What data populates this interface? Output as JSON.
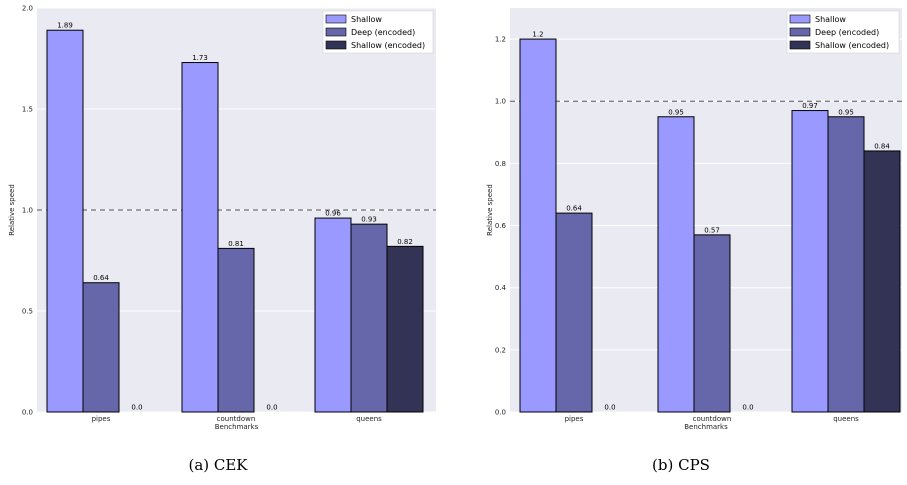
{
  "captions": [
    "(a) CEK",
    "(b) CPS"
  ],
  "colors": [
    "#9999ff",
    "#6666aa",
    "#333355"
  ],
  "chart_data": [
    {
      "type": "bar",
      "categories": [
        "pipes",
        "countdown",
        "queens"
      ],
      "series": [
        {
          "name": "Shallow",
          "values": [
            1.89,
            1.73,
            0.96
          ],
          "labels": [
            "1.89",
            "1.73",
            "0.96"
          ]
        },
        {
          "name": "Deep (encoded)",
          "values": [
            0.64,
            0.81,
            0.93
          ],
          "labels": [
            "0.64",
            "0.81",
            "0.93"
          ]
        },
        {
          "name": "Shallow (encoded)",
          "values": [
            0.0,
            0.0,
            0.82
          ],
          "labels": [
            "0.0",
            "0.0",
            "0.82"
          ]
        }
      ],
      "xlabel": "Benchmarks",
      "ylabel": "Relative speed",
      "ylim": [
        0,
        2.0
      ],
      "yticks": [
        "0.0",
        "0.5",
        "1.0",
        "1.5",
        "2.0"
      ],
      "reference_line": 1.0,
      "legend": "top-right",
      "grid": true
    },
    {
      "type": "bar",
      "categories": [
        "pipes",
        "countdown",
        "queens"
      ],
      "series": [
        {
          "name": "Shallow",
          "values": [
            1.2,
            0.95,
            0.97
          ],
          "labels": [
            "1.2",
            "0.95",
            "0.97"
          ]
        },
        {
          "name": "Deep (encoded)",
          "values": [
            0.64,
            0.57,
            0.95
          ],
          "labels": [
            "0.64",
            "0.57",
            "0.95"
          ]
        },
        {
          "name": "Shallow (encoded)",
          "values": [
            0.0,
            0.0,
            0.84
          ],
          "labels": [
            "0.0",
            "0.0",
            "0.84"
          ]
        }
      ],
      "xlabel": "Benchmarks",
      "ylabel": "Relative speed",
      "ylim": [
        0,
        1.3
      ],
      "yticks": [
        "0.0",
        "0.2",
        "0.4",
        "0.6",
        "0.8",
        "1.0",
        "1.2"
      ],
      "reference_line": 1.0,
      "legend": "top-right",
      "grid": true
    }
  ]
}
